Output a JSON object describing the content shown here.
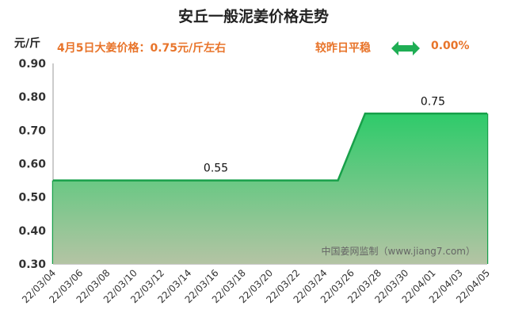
{
  "header": {
    "title": "安丘一般泥姜价格走势",
    "unit": "元/斤",
    "price_note": "4月5日大姜价格：0.75元/斤左右",
    "compare_text": "较昨日平稳",
    "change_pct": "0.00%",
    "change_icon": "left-right-arrow-icon"
  },
  "watermark": "中国姜网监制（www.jiang7.com）",
  "colors": {
    "accent_text": "#e8742a",
    "line": "#18a04a",
    "fill_top": "#2ecb6a",
    "fill_bottom": "#b4c4a4",
    "arrow": "#1fae54"
  },
  "chart_data": {
    "type": "area",
    "title": "安丘一般泥姜价格走势",
    "ylabel": "元/斤",
    "xlabel": "",
    "ylim": [
      0.3,
      0.9
    ],
    "yticks": [
      "0.30",
      "0.40",
      "0.50",
      "0.60",
      "0.70",
      "0.80",
      "0.90"
    ],
    "xticks": [
      "22/03/04",
      "22/03/06",
      "22/03/08",
      "22/03/10",
      "22/03/12",
      "22/03/14",
      "22/03/16",
      "22/03/18",
      "22/03/20",
      "22/03/22",
      "22/03/24",
      "22/03/26",
      "22/03/28",
      "22/03/30",
      "22/04/01",
      "22/04/03",
      "22/04/05"
    ],
    "x": [
      "22/03/04",
      "22/03/05",
      "22/03/06",
      "22/03/07",
      "22/03/08",
      "22/03/09",
      "22/03/10",
      "22/03/11",
      "22/03/12",
      "22/03/13",
      "22/03/14",
      "22/03/15",
      "22/03/16",
      "22/03/17",
      "22/03/18",
      "22/03/19",
      "22/03/20",
      "22/03/21",
      "22/03/22",
      "22/03/23",
      "22/03/24",
      "22/03/25",
      "22/03/26",
      "22/03/27",
      "22/03/28",
      "22/03/29",
      "22/03/30",
      "22/03/31",
      "22/04/01",
      "22/04/02",
      "22/04/03",
      "22/04/04",
      "22/04/05"
    ],
    "values": [
      0.55,
      0.55,
      0.55,
      0.55,
      0.55,
      0.55,
      0.55,
      0.55,
      0.55,
      0.55,
      0.55,
      0.55,
      0.55,
      0.55,
      0.55,
      0.55,
      0.55,
      0.55,
      0.55,
      0.55,
      0.55,
      0.55,
      0.65,
      0.75,
      0.75,
      0.75,
      0.75,
      0.75,
      0.75,
      0.75,
      0.75,
      0.75,
      0.75
    ],
    "data_labels": [
      {
        "x": "22/03/16",
        "text": "0.55"
      },
      {
        "x": "22/04/01",
        "text": "0.75"
      }
    ],
    "grid": false
  }
}
